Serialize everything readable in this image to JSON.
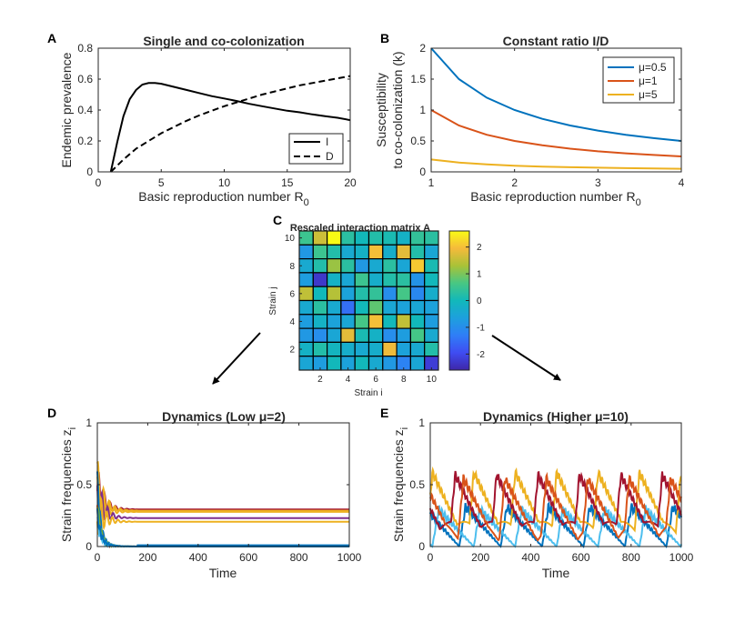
{
  "colors": {
    "I": "#000000",
    "D": "#000000",
    "mu_0_5": "#0072BD",
    "mu_1": "#D95319",
    "mu_5": "#EDB120",
    "dyn": [
      "#0072BD",
      "#D95319",
      "#EDB120",
      "#7E2F8E",
      "#77AC30",
      "#4DBEEE",
      "#A2142F"
    ]
  },
  "chart_data": [
    {
      "id": "A",
      "panel_label": "A",
      "type": "line",
      "title": "Single and co-colonization",
      "xlabel": "Basic reproduction number R",
      "xlabel_sub": "0",
      "ylabel": "Endemic prevalence",
      "xlim": [
        0,
        20
      ],
      "ylim": [
        0,
        0.8
      ],
      "xticks": [
        "0",
        "5",
        "10",
        "15",
        "20"
      ],
      "yticks": [
        "0",
        "0.2",
        "0.4",
        "0.6",
        "0.8"
      ],
      "legend_position": "bottom-right",
      "series": [
        {
          "name": "I",
          "style": "solid",
          "x": [
            1,
            1.5,
            2,
            2.5,
            3,
            3.5,
            4,
            4.5,
            5,
            6,
            7,
            8,
            9,
            10,
            11,
            12,
            13,
            14,
            15,
            16,
            17,
            18,
            19,
            20
          ],
          "y": [
            0,
            0.19,
            0.36,
            0.47,
            0.53,
            0.565,
            0.575,
            0.575,
            0.57,
            0.55,
            0.53,
            0.51,
            0.49,
            0.475,
            0.458,
            0.44,
            0.425,
            0.41,
            0.395,
            0.385,
            0.372,
            0.36,
            0.35,
            0.335
          ]
        },
        {
          "name": "D",
          "style": "dashed",
          "x": [
            1,
            2,
            3,
            4,
            5,
            6,
            7,
            8,
            9,
            10,
            11,
            12,
            13,
            14,
            15,
            16,
            17,
            18,
            19,
            20
          ],
          "y": [
            0,
            0.08,
            0.15,
            0.2,
            0.25,
            0.29,
            0.33,
            0.365,
            0.395,
            0.425,
            0.45,
            0.475,
            0.5,
            0.52,
            0.54,
            0.56,
            0.575,
            0.59,
            0.605,
            0.62
          ]
        }
      ]
    },
    {
      "id": "B",
      "panel_label": "B",
      "type": "line",
      "title": "Constant ratio I/D",
      "xlabel": "Basic reproduction number R",
      "xlabel_sub": "0",
      "ylabel": [
        "Susceptibility",
        "to co-colonization (k)"
      ],
      "xlim": [
        1,
        4
      ],
      "ylim": [
        0,
        2
      ],
      "xticks": [
        "1",
        "2",
        "3",
        "4"
      ],
      "yticks": [
        "0",
        "0.5",
        "1",
        "1.5",
        "2"
      ],
      "legend_position": "top-right",
      "series": [
        {
          "name": "μ=0.5",
          "color_key": "mu_0_5",
          "x": [
            1,
            1.333,
            1.667,
            2,
            2.333,
            2.667,
            3,
            3.333,
            3.667,
            4
          ],
          "y": [
            2,
            1.5,
            1.2,
            1,
            0.857,
            0.75,
            0.667,
            0.6,
            0.545,
            0.5
          ]
        },
        {
          "name": "μ=1",
          "color_key": "mu_1",
          "x": [
            1,
            1.333,
            1.667,
            2,
            2.333,
            2.667,
            3,
            3.333,
            3.667,
            4
          ],
          "y": [
            1,
            0.75,
            0.6,
            0.5,
            0.429,
            0.375,
            0.333,
            0.3,
            0.273,
            0.25
          ]
        },
        {
          "name": "μ=5",
          "color_key": "mu_5",
          "x": [
            1,
            1.333,
            1.667,
            2,
            2.333,
            2.667,
            3,
            3.333,
            3.667,
            4
          ],
          "y": [
            0.2,
            0.15,
            0.12,
            0.1,
            0.086,
            0.075,
            0.067,
            0.06,
            0.055,
            0.05
          ]
        }
      ]
    },
    {
      "id": "C",
      "panel_label": "C",
      "type": "heatmap",
      "title": "Rescaled interaction matrix A",
      "xlabel": "Strain i",
      "ylabel": "Strain j",
      "xticks": [
        "2",
        "4",
        "6",
        "8",
        "10"
      ],
      "yticks": [
        "2",
        "4",
        "6",
        "8",
        "10"
      ],
      "colorbar_ticks": [
        "2",
        "1",
        "0",
        "-1",
        "-2"
      ],
      "clim": [
        -2.6,
        2.6
      ],
      "rows_top_to_bottom": [
        [
          0.5,
          1.6,
          2.6,
          0.3,
          0.0,
          0.2,
          0.1,
          -0.2,
          0.4,
          0.3
        ],
        [
          -0.8,
          0.5,
          0.2,
          -0.4,
          -0.2,
          2.0,
          -0.3,
          1.8,
          0.2,
          -0.5
        ],
        [
          -0.4,
          0.2,
          1.2,
          0.3,
          -0.8,
          -0.4,
          0.3,
          -0.5,
          2.1,
          0.1
        ],
        [
          -0.7,
          -2.3,
          -0.2,
          -0.5,
          0.5,
          -0.3,
          0.2,
          0.3,
          -0.9,
          0.0
        ],
        [
          1.5,
          0.0,
          1.4,
          -0.6,
          0.2,
          0.4,
          -1.0,
          0.6,
          -1.1,
          -0.3
        ],
        [
          -0.4,
          0.3,
          -0.4,
          -1.5,
          0.0,
          0.8,
          -0.5,
          -0.6,
          -0.5,
          -0.6
        ],
        [
          -0.7,
          -0.2,
          -0.6,
          -0.5,
          0.6,
          2.0,
          0.0,
          1.5,
          0.0,
          -0.7
        ],
        [
          -0.8,
          -1.0,
          -0.5,
          1.8,
          0.1,
          -0.2,
          -1.0,
          -0.7,
          0.6,
          -0.4
        ],
        [
          -0.2,
          0.2,
          -0.1,
          -0.3,
          -0.4,
          -0.3,
          1.9,
          -0.6,
          -0.4,
          0.2
        ],
        [
          -0.5,
          -0.7,
          0.0,
          -0.6,
          0.0,
          -0.4,
          -0.8,
          -1.2,
          -0.5,
          -2.2
        ]
      ]
    },
    {
      "id": "D",
      "panel_label": "D",
      "type": "line",
      "title": "Dynamics (Low μ=2)",
      "xlabel": "Time",
      "ylabel": "Strain frequencies z",
      "ylabel_sub": "i",
      "xlim": [
        0,
        1000
      ],
      "ylim": [
        0,
        1
      ],
      "xticks": [
        "0",
        "200",
        "400",
        "600",
        "800",
        "1000"
      ],
      "yticks": [
        "0",
        "0.5",
        "1"
      ],
      "transient_end_time": 150,
      "steady_state": [
        0.3,
        0.29,
        0.28,
        0.23,
        0.2,
        0.01,
        0.0,
        0.0,
        0.0,
        0.0
      ]
    },
    {
      "id": "E",
      "panel_label": "E",
      "type": "line",
      "title": "Dynamics (Higher μ=10)",
      "xlabel": "Time",
      "ylabel": "Strain frequencies z",
      "ylabel_sub": "i",
      "xlim": [
        0,
        1000
      ],
      "ylim": [
        0,
        1
      ],
      "xticks": [
        "0",
        "200",
        "400",
        "600",
        "800",
        "1000"
      ],
      "yticks": [
        "0",
        "0.5",
        "1"
      ],
      "oscillation_range": [
        0.0,
        0.62
      ]
    }
  ]
}
